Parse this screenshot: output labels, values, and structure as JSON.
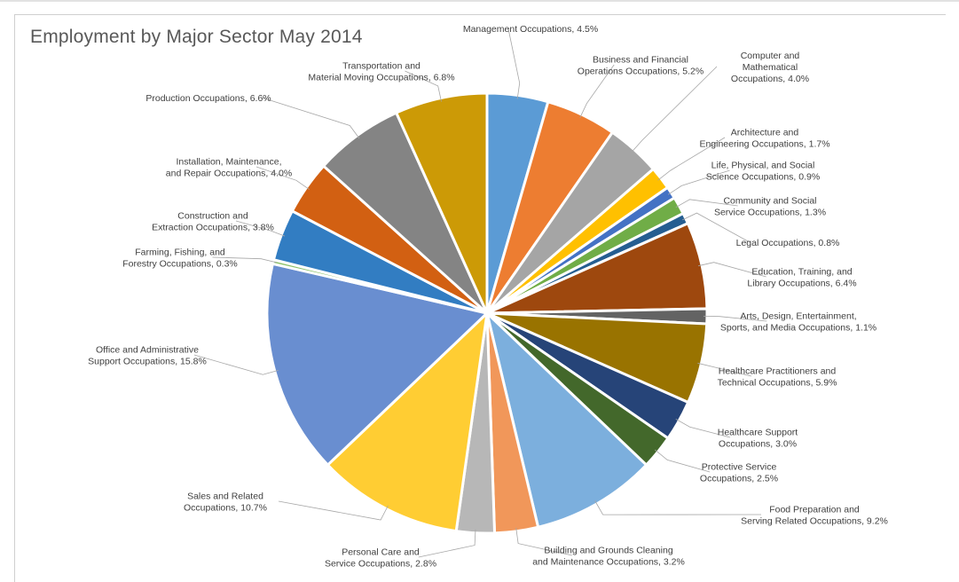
{
  "chart_data": {
    "type": "pie",
    "title": "Employment by Major Sector May 2014",
    "slices": [
      {
        "label": "Management Occupations, 4.5%",
        "value": 4.5,
        "color": "#5B9BD5"
      },
      {
        "label": "Business and Financial Operations Occupations, 5.2%",
        "value": 5.2,
        "color": "#ED7D31"
      },
      {
        "label": "Computer and Mathematical Occupations, 4.0%",
        "value": 4.0,
        "color": "#A5A5A5"
      },
      {
        "label": "Architecture and Engineering Occupations, 1.7%",
        "value": 1.7,
        "color": "#FFC000"
      },
      {
        "label": "Life, Physical, and Social Science Occupations, 0.9%",
        "value": 0.9,
        "color": "#4472C4"
      },
      {
        "label": "Community and Social Service Occupations, 1.3%",
        "value": 1.3,
        "color": "#70AD47"
      },
      {
        "label": "Legal Occupations, 0.8%",
        "value": 0.8,
        "color": "#255E91"
      },
      {
        "label": "Education, Training, and Library Occupations, 6.4%",
        "value": 6.4,
        "color": "#9E480E"
      },
      {
        "label": "Arts, Design, Entertainment, Sports, and Media Occupations, 1.1%",
        "value": 1.1,
        "color": "#636363"
      },
      {
        "label": "Healthcare Practitioners and Technical Occupations, 5.9%",
        "value": 5.9,
        "color": "#997300"
      },
      {
        "label": "Healthcare Support Occupations, 3.0%",
        "value": 3.0,
        "color": "#264478"
      },
      {
        "label": "Protective Service Occupations, 2.5%",
        "value": 2.5,
        "color": "#43682B"
      },
      {
        "label": "Food Preparation and Serving Related Occupations, 9.2%",
        "value": 9.2,
        "color": "#7CAFDD"
      },
      {
        "label": "Building and Grounds Cleaning and Maintenance Occupations, 3.2%",
        "value": 3.2,
        "color": "#F1975A"
      },
      {
        "label": "Personal Care and Service Occupations, 2.8%",
        "value": 2.8,
        "color": "#B7B7B7"
      },
      {
        "label": "Sales and Related Occupations, 10.7%",
        "value": 10.7,
        "color": "#FFCD33"
      },
      {
        "label": "Office and Administrative Support Occupations, 15.8%",
        "value": 15.8,
        "color": "#698ED0"
      },
      {
        "label": "Farming, Fishing, and Forestry Occupations, 0.3%",
        "value": 0.3,
        "color": "#8CC168"
      },
      {
        "label": "Construction and Extraction Occupations, 3.8%",
        "value": 3.8,
        "color": "#327DC2"
      },
      {
        "label": "Installation, Maintenance, and Repair Occupations, 4.0%",
        "value": 4.0,
        "color": "#D26012"
      },
      {
        "label": "Production Occupations, 6.6%",
        "value": 6.6,
        "color": "#848484"
      },
      {
        "label": "Transportation and Material Moving Occupations, 6.8%",
        "value": 6.8,
        "color": "#CC9A06"
      }
    ],
    "legend": "none",
    "start": "12 o'clock, clockwise"
  }
}
